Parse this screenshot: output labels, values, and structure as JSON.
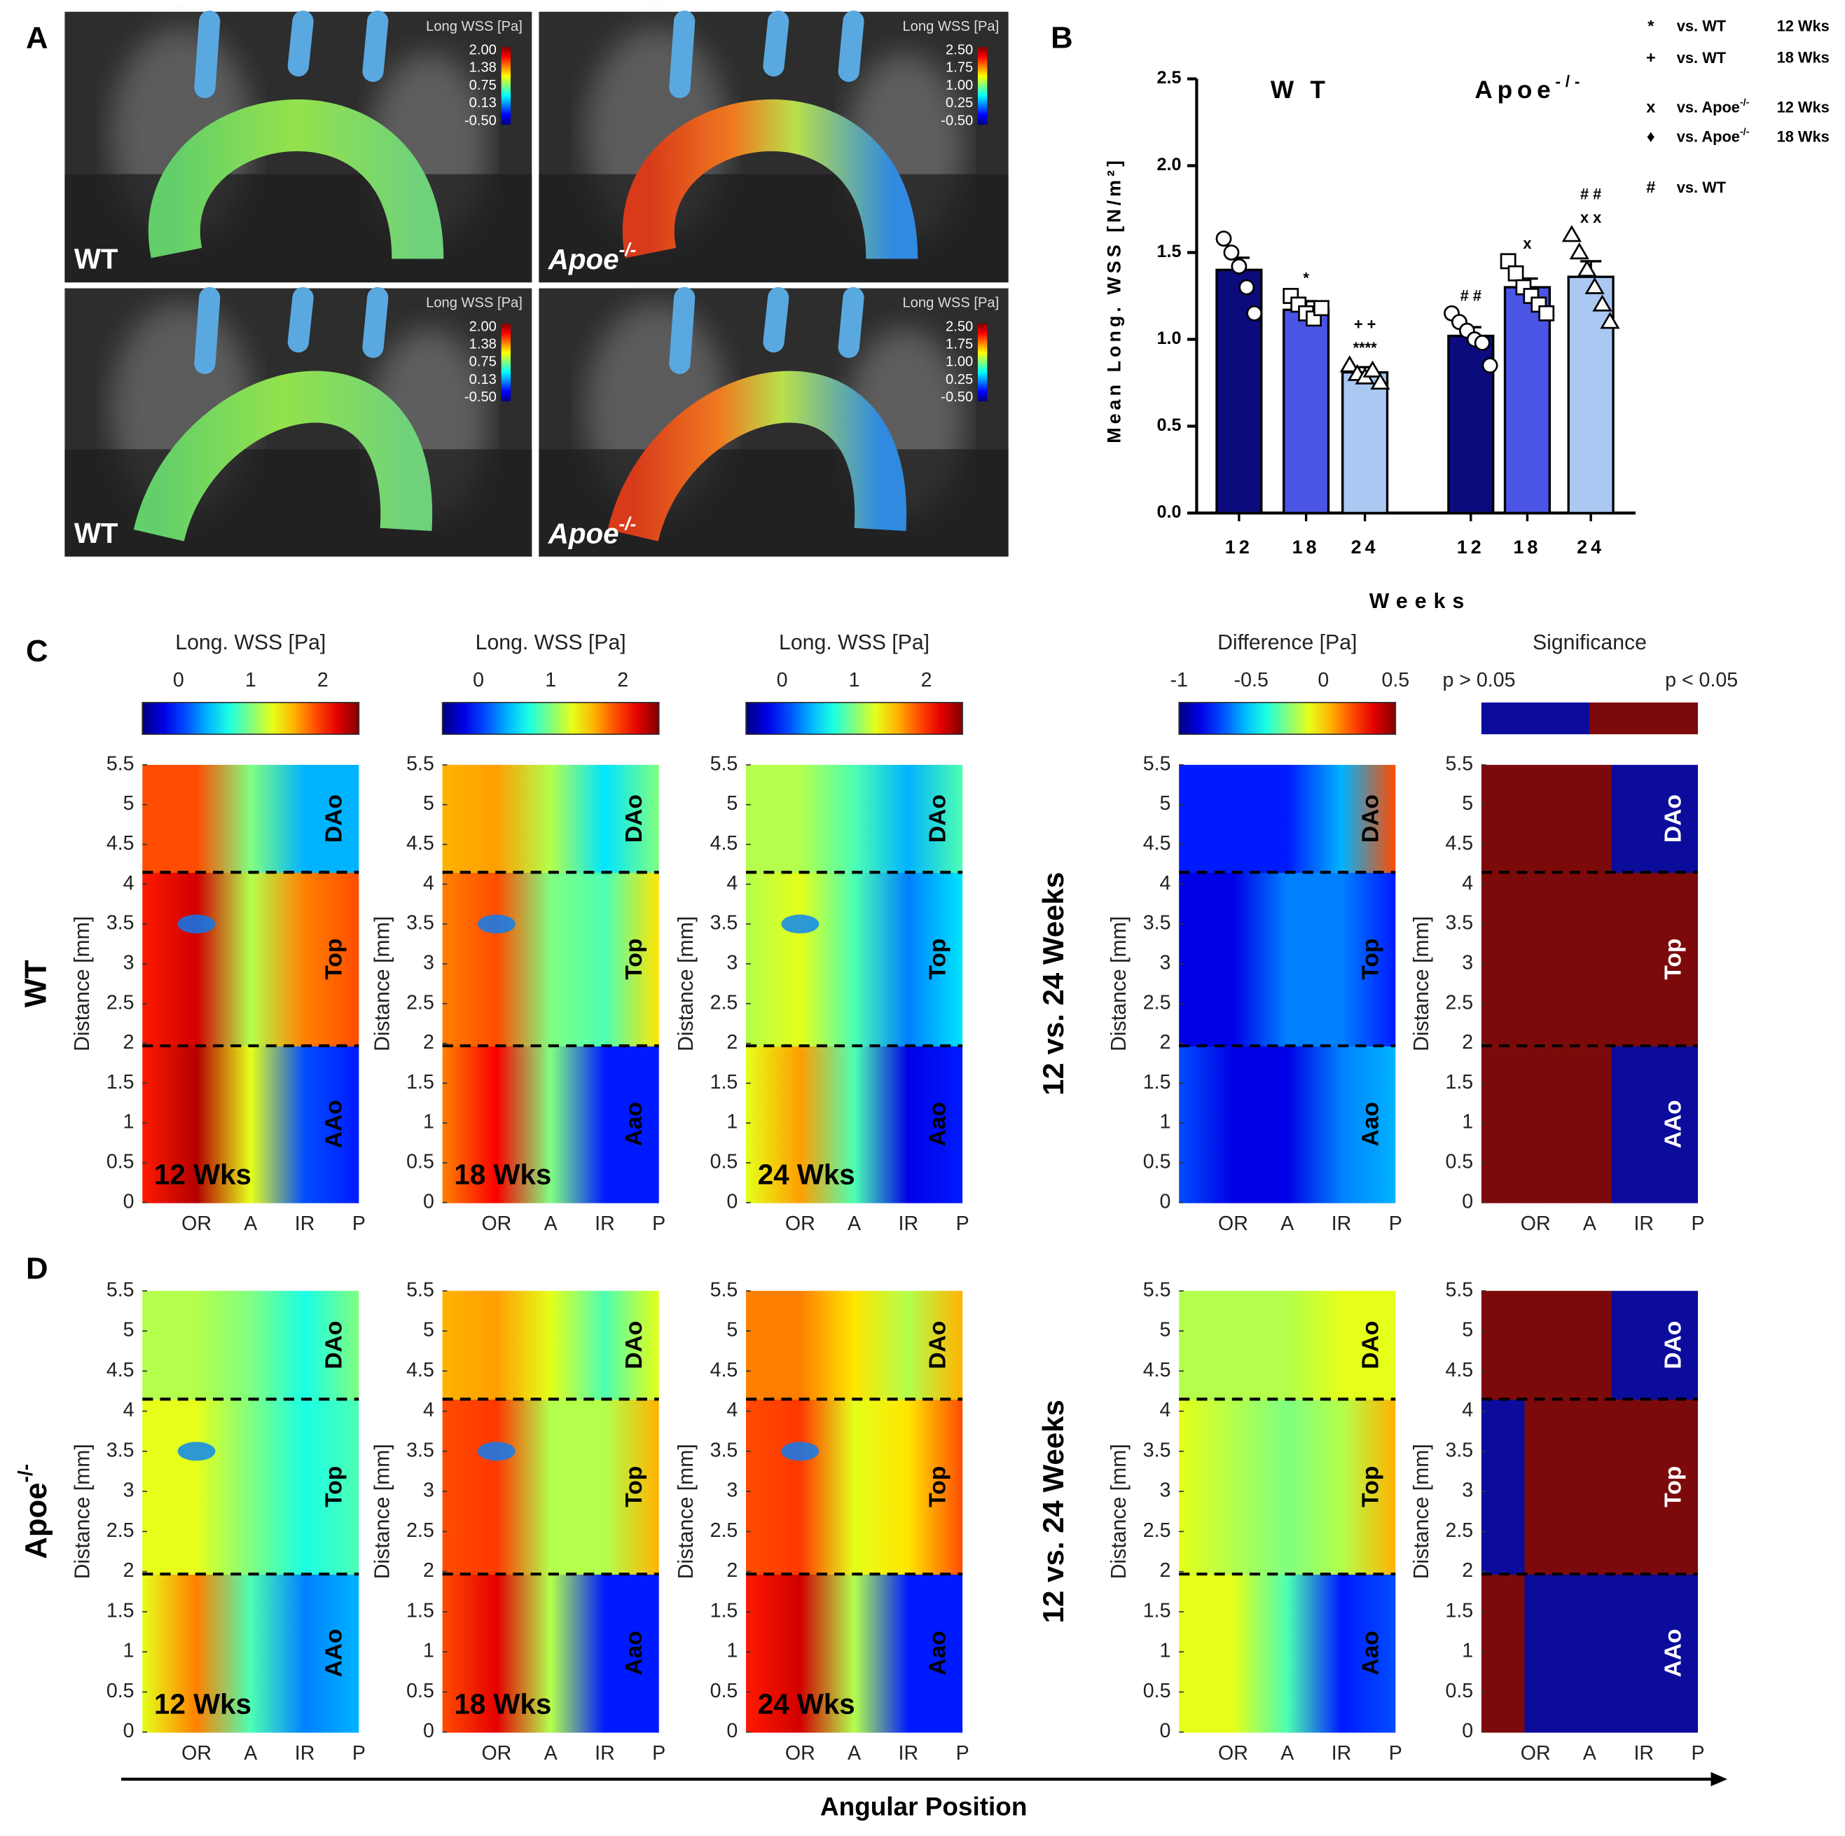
{
  "panel_labels": [
    "A",
    "B",
    "C",
    "D"
  ],
  "panel_a": {
    "colorbar_title": "Long WSS [Pa]",
    "wt_ticks": [
      "2.00",
      "1.38",
      "0.75",
      "0.13",
      "-0.50"
    ],
    "apoe_ticks": [
      "2.50",
      "1.75",
      "1.00",
      "0.25",
      "-0.50"
    ],
    "wt_label": "WT",
    "apoe_label": {
      "text": "Apoe",
      "sup": "-/-"
    }
  },
  "chart_data": {
    "type": "bar",
    "ylabel": "Mean Long. WSS [N/m²]",
    "xlabel": "Weeks",
    "groups": [
      {
        "text": "W T"
      },
      {
        "text": "Apoe",
        "sup": "-/-"
      }
    ],
    "categories": [
      "12",
      "18",
      "24",
      "12",
      "18",
      "24"
    ],
    "values": [
      1.4,
      1.17,
      0.81,
      1.02,
      1.3,
      1.36
    ],
    "errors": [
      0.07,
      0.05,
      0.03,
      0.05,
      0.05,
      0.09
    ],
    "colors": [
      "#0b0b7d",
      "#4a55e6",
      "#a9c8f2",
      "#0b0b7d",
      "#4a55e6",
      "#a9c8f2"
    ],
    "markers": [
      "circle",
      "square",
      "triangle",
      "circle",
      "square",
      "triangle"
    ],
    "points": [
      [
        1.58,
        1.5,
        1.42,
        1.3,
        1.15
      ],
      [
        1.25,
        1.2,
        1.15,
        1.12,
        1.18
      ],
      [
        0.85,
        0.8,
        0.78,
        0.82,
        0.75
      ],
      [
        1.15,
        1.1,
        1.05,
        1.0,
        0.98,
        0.85
      ],
      [
        1.45,
        1.38,
        1.3,
        1.25,
        1.2,
        1.15
      ],
      [
        1.6,
        1.5,
        1.4,
        1.3,
        1.2,
        1.1
      ]
    ],
    "annotations": [
      [],
      [
        "*"
      ],
      [
        "****",
        "+ +"
      ],
      [
        "# #"
      ],
      [
        "x"
      ],
      [
        "x x",
        "# #"
      ]
    ],
    "ylim": [
      0,
      2.5
    ],
    "yticks": [
      {
        "value": 0,
        "label": "0.0"
      },
      0.5,
      {
        "value": 1,
        "label": "1.0"
      },
      1.5,
      {
        "value": 2,
        "label": "2.0"
      },
      2.5
    ],
    "legend": [
      {
        "symbol": "*",
        "text": "vs. WT",
        "weeks": "12 Wks"
      },
      {
        "symbol": "+",
        "text": "vs. WT",
        "weeks": "18 Wks"
      },
      {
        "symbol": "x",
        "text": "vs. Apoe",
        "sup": "-/-",
        "weeks": "12 Wks"
      },
      {
        "symbol": "♦",
        "text": "vs. Apoe",
        "sup": "-/-",
        "weeks": "18 Wks"
      },
      {
        "symbol": "#",
        "text": "vs. WT"
      }
    ]
  },
  "heatmaps": {
    "wss_title": "Long. WSS [Pa]",
    "wss_range": [
      -0.5,
      2.5
    ],
    "wss_ticks": [
      0,
      1,
      2
    ],
    "diff_title": "Difference [Pa]",
    "diff_range": [
      -1,
      0.5
    ],
    "diff_ticks": [
      -1,
      -0.5,
      0,
      0.5
    ],
    "sig_title": "Significance",
    "sig_labels": [
      "p > 0.05",
      "p < 0.05"
    ],
    "ylabel": "Distance [mm]",
    "ylim": [
      0,
      5.5
    ],
    "yticks": [
      0,
      0.5,
      1,
      1.5,
      2,
      2.5,
      3,
      3.5,
      4,
      4.5,
      5,
      5.5
    ],
    "xticks": [
      "OR",
      "A",
      "IR",
      "P"
    ],
    "boundaries": [
      1.97,
      4.15
    ],
    "comparison": "12 vs. 24 Weeks",
    "xlabel": "Angular Position",
    "rows": [
      {
        "label": {
          "text": "WT"
        },
        "panels": [
          {
            "week": "12 Wks",
            "regions": [
              "AAo",
              "Top",
              "DAo"
            ]
          },
          {
            "week": "18 Wks",
            "regions": [
              "Aao",
              "Top",
              "DAo"
            ]
          },
          {
            "week": "24 Wks",
            "regions": [
              "Aao",
              "Top",
              "DAo"
            ]
          },
          {
            "regions": [
              "Aao",
              "Top",
              "DAo"
            ]
          },
          {
            "regions": [
              "AAo",
              "Top",
              "DAo"
            ]
          }
        ]
      },
      {
        "label": {
          "text": "Apoe",
          "sup": "-/-"
        },
        "panels": [
          {
            "week": "12 Wks",
            "regions": [
              "AAo",
              "Top",
              "DAo"
            ]
          },
          {
            "week": "18 Wks",
            "regions": [
              "Aao",
              "Top",
              "DAo"
            ]
          },
          {
            "week": "24 Wks",
            "regions": [
              "Aao",
              "Top",
              "DAo"
            ]
          },
          {
            "regions": [
              "Aao",
              "Top",
              "DAo"
            ]
          },
          {
            "regions": [
              "AAo",
              "Top",
              "DAo"
            ]
          }
        ]
      }
    ]
  }
}
